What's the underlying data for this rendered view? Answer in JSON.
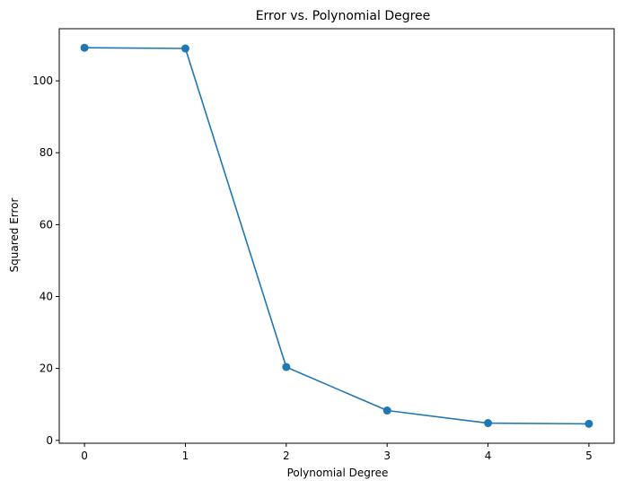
{
  "chart_data": {
    "type": "line",
    "title": "Error vs. Polynomial Degree",
    "xlabel": "Polynomial Degree",
    "ylabel": "Squared Error",
    "x": [
      0,
      1,
      2,
      3,
      4,
      5
    ],
    "series": [
      {
        "values": [
          109.2,
          109.0,
          20.4,
          8.3,
          4.8,
          4.6
        ],
        "color": "#1f77b4",
        "marker": "circle"
      }
    ],
    "xlim": [
      -0.25,
      5.25
    ],
    "ylim": [
      -0.8,
      114.5
    ],
    "xticks": [
      0,
      1,
      2,
      3,
      4,
      5
    ],
    "xtick_labels": [
      "0",
      "1",
      "2",
      "3",
      "4",
      "5"
    ],
    "yticks": [
      0,
      20,
      40,
      60,
      80,
      100
    ],
    "ytick_labels": [
      "0",
      "20",
      "40",
      "60",
      "80",
      "100"
    ],
    "grid": false,
    "legend": false
  }
}
